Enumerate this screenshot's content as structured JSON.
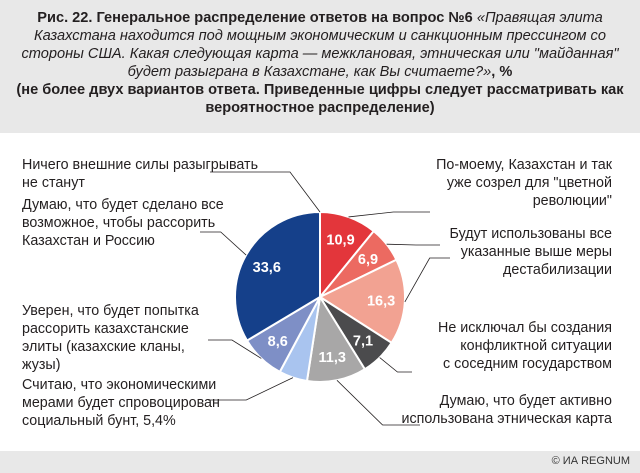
{
  "title": {
    "bold_part": "Рис. 22. Генеральное распределение ответов на вопрос №6",
    "italic_part": "«Правящая элита Казахстана находится под мощным экономическим и санкционным прессингом со стороны США. Какая следующая карта — межклановая, этническая или \"майданная\" будет разыграна в Казахстане, как Вы считаете?»",
    "unit": ", %",
    "note": "(не более двух вариантов ответа. Приведенные цифры следует рассматривать как вероятностное распределение)"
  },
  "credit": "© ИА REGNUM",
  "chart_data": {
    "type": "pie",
    "title": "Рис. 22. Генеральное распределение ответов на вопрос №6",
    "unit": "%",
    "slices": [
      {
        "label": "По-моему, Казахстан и так уже созрел для \"цветной революции\"",
        "value": 10.9,
        "display": "10,9",
        "color": "#e3363b"
      },
      {
        "label": "Будут использованы все указанные выше меры дестабилизации",
        "value": 6.9,
        "display": "6,9",
        "color": "#ec6a61"
      },
      {
        "label": "Будут использованы все указанные выше меры дестабилизации",
        "value": 16.3,
        "display": "16,3",
        "color": "#f2a292"
      },
      {
        "label": "Не исключал бы создания конфликтной ситуации с соседним государством",
        "value": 7.1,
        "display": "7,1",
        "color": "#4b4b4d"
      },
      {
        "label": "Думаю, что будет активно использована этническая карта",
        "value": 11.3,
        "display": "11,3",
        "color": "#a8a7a7"
      },
      {
        "label": "Считаю, что экономическими мерами будет спровоцирован социальный бунт, 5,4%",
        "value": 5.4,
        "display": "",
        "color": "#a9c4ef"
      },
      {
        "label": "Уверен, что будет попытка рассорить казахстанские элиты (казахские кланы, жузы)",
        "value": 8.6,
        "display": "8,6",
        "color": "#7e8fc6"
      },
      {
        "label": "Думаю, что будет сделано все возможное, чтобы рассорить Казахстан и Россию",
        "value": 33.6,
        "display": "33,6",
        "color": "#15408a"
      },
      {
        "label": "Ничего внешние силы разыгрывать не станут",
        "value": 0.0,
        "display": "",
        "color": "#ffffff"
      }
    ]
  },
  "labels": {
    "nothing": [
      "Ничего внешние силы разыгрывать",
      "не станут"
    ],
    "russia": [
      "Думаю, что будет сделано все",
      "возможное, чтобы рассорить",
      "Казахстан и Россию"
    ],
    "elites": [
      "Уверен, что будет попытка",
      "рассорить казахстанские",
      "элиты (казахские кланы,",
      "жузы)"
    ],
    "riot": [
      "Считаю, что экономическими",
      "мерами будет спровоцирован",
      "социальный бунт, 5,4%"
    ],
    "color_rev": [
      "По-моему, Казахстан и так",
      "уже созрел для \"цветной",
      "революции\""
    ],
    "all_measures": [
      "Будут использованы все",
      "указанные выше меры",
      "дестабилизации"
    ],
    "neighbor": [
      "Не исключал бы создания",
      "конфликтной ситуации",
      "с соседним государством"
    ],
    "ethnic": [
      "Думаю, что будет активно",
      "использована этническая карта"
    ]
  }
}
